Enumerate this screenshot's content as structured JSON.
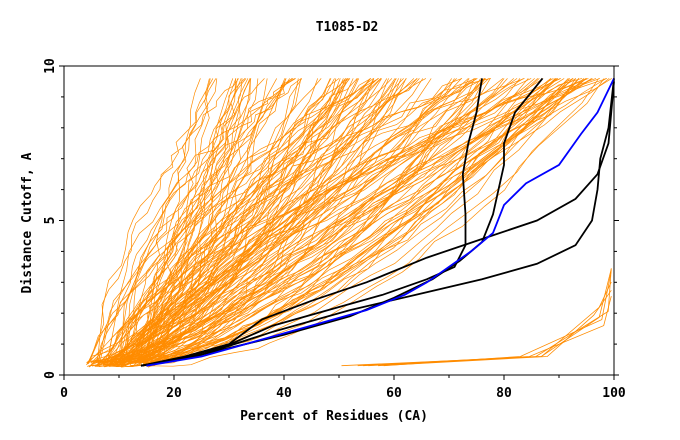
{
  "chart_data": {
    "type": "line",
    "title": "T1085-D2",
    "xlabel": "Percent of Residues (CA)",
    "ylabel": "Distance Cutoff, A",
    "xlim": [
      0,
      100
    ],
    "ylim": [
      0,
      10
    ],
    "x_ticks": [
      0,
      20,
      40,
      60,
      80,
      100
    ],
    "y_ticks": [
      0,
      5,
      10
    ],
    "grid": false,
    "legend": "none",
    "colors": {
      "bundle": "#ff8c00",
      "highlight": "#000000",
      "reference": "#0000ff",
      "axes": "#000000"
    },
    "bundle_count": 160,
    "highlighted_series": [
      {
        "color": "black",
        "points": [
          [
            14,
            0.3
          ],
          [
            20,
            0.5
          ],
          [
            29,
            0.9
          ],
          [
            38,
            1.6
          ],
          [
            48,
            2.1
          ],
          [
            58,
            2.6
          ],
          [
            66,
            3.1
          ],
          [
            71,
            3.5
          ],
          [
            73,
            4.2
          ],
          [
            73,
            5.2
          ],
          [
            72.5,
            6.5
          ],
          [
            73.5,
            7.5
          ],
          [
            75,
            8.5
          ],
          [
            76,
            9.6
          ]
        ]
      },
      {
        "color": "black",
        "points": [
          [
            14,
            0.3
          ],
          [
            22,
            0.6
          ],
          [
            30,
            1.0
          ],
          [
            36,
            1.8
          ],
          [
            45,
            2.4
          ],
          [
            55,
            3.0
          ],
          [
            66,
            3.8
          ],
          [
            76,
            4.4
          ],
          [
            86,
            5.0
          ],
          [
            93,
            5.7
          ],
          [
            97,
            6.5
          ],
          [
            99,
            7.5
          ],
          [
            100,
            9.5
          ]
        ]
      },
      {
        "color": "black",
        "points": [
          [
            14,
            0.3
          ],
          [
            24,
            0.6
          ],
          [
            38,
            1.4
          ],
          [
            52,
            2.1
          ],
          [
            64,
            2.6
          ],
          [
            76,
            3.1
          ],
          [
            86,
            3.6
          ],
          [
            93,
            4.2
          ],
          [
            96,
            5.0
          ],
          [
            97,
            6.0
          ],
          [
            97.5,
            7.0
          ],
          [
            99,
            8.0
          ],
          [
            100,
            9.6
          ]
        ]
      },
      {
        "color": "black",
        "points": [
          [
            14,
            0.3
          ],
          [
            26,
            0.7
          ],
          [
            40,
            1.3
          ],
          [
            52,
            1.9
          ],
          [
            60,
            2.5
          ],
          [
            67,
            3.1
          ],
          [
            72,
            3.7
          ],
          [
            76,
            4.3
          ],
          [
            78,
            5.2
          ],
          [
            79,
            6.0
          ],
          [
            80,
            6.8
          ],
          [
            80,
            7.5
          ],
          [
            82,
            8.5
          ],
          [
            87,
            9.6
          ]
        ]
      },
      {
        "color": "blue",
        "points": [
          [
            15,
            0.3
          ],
          [
            25,
            0.6
          ],
          [
            35,
            1.1
          ],
          [
            45,
            1.6
          ],
          [
            55,
            2.1
          ],
          [
            62,
            2.6
          ],
          [
            66,
            3.0
          ],
          [
            70,
            3.5
          ],
          [
            74,
            4.0
          ],
          [
            78,
            4.6
          ],
          [
            80,
            5.5
          ],
          [
            84,
            6.2
          ],
          [
            90,
            6.8
          ],
          [
            94,
            7.8
          ],
          [
            97,
            8.5
          ],
          [
            100,
            9.6
          ]
        ]
      }
    ]
  }
}
